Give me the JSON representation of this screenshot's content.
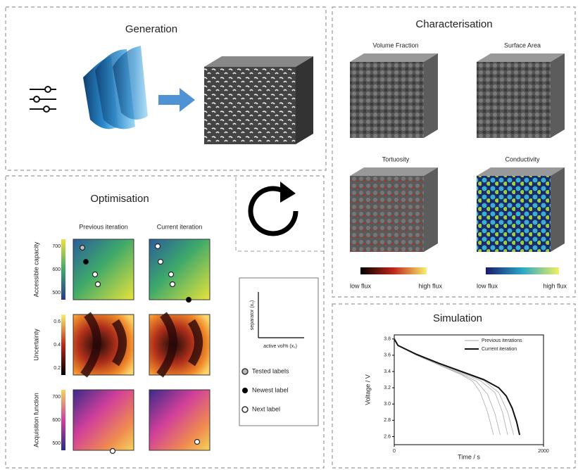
{
  "generation": {
    "title": "Generation"
  },
  "characterisation": {
    "title": "Characterisation",
    "panels": [
      "Volume Fraction",
      "Surface Area",
      "Tortuosity",
      "Conductivity"
    ],
    "scale_low": "low flux",
    "scale_high": "high flux"
  },
  "optimisation": {
    "title": "Optimisation",
    "columns": [
      "Previous iteration",
      "Current iteration"
    ],
    "rows": [
      {
        "label": "Accessible capacity",
        "ticks": [
          "700",
          "600",
          "500"
        ]
      },
      {
        "label": "Uncertainty",
        "ticks": [
          "0.6",
          "0.4",
          "0.2"
        ]
      },
      {
        "label": "Acquisition function",
        "ticks": [
          "700",
          "600",
          "500"
        ]
      }
    ],
    "legend": {
      "x_axis": "active vol% (x₁)",
      "y_axis": "separator (x₂)",
      "items": [
        "Tested labels",
        "Newest label",
        "Next label"
      ]
    }
  },
  "simulation": {
    "title": "Simulation",
    "x_label": "Time / s",
    "y_label": "Voltage / V",
    "xlim": [
      0,
      2000
    ],
    "xticks": [
      0,
      2000
    ],
    "ylim": [
      2.5,
      3.85
    ],
    "yticks": [
      3.8,
      3.6,
      3.4,
      3.2,
      {
        "value": 3,
        "label": "3.0"
      },
      2.8,
      2.6
    ],
    "series": [
      {
        "name": "Previous iterations",
        "color": "#aaaaaa",
        "x": [
          0,
          50,
          300,
          600,
          900,
          1050,
          1150,
          1250,
          1330
        ],
        "y": [
          3.8,
          3.72,
          3.6,
          3.48,
          3.36,
          3.28,
          3.15,
          2.9,
          2.62
        ]
      },
      {
        "name": null,
        "color": "#aaaaaa",
        "x": [
          0,
          50,
          300,
          600,
          900,
          1100,
          1250,
          1350,
          1420
        ],
        "y": [
          3.8,
          3.72,
          3.6,
          3.48,
          3.37,
          3.28,
          3.12,
          2.88,
          2.62
        ]
      },
      {
        "name": null,
        "color": "#aaaaaa",
        "x": [
          0,
          50,
          300,
          600,
          900,
          1150,
          1350,
          1450,
          1520
        ],
        "y": [
          3.8,
          3.72,
          3.6,
          3.49,
          3.38,
          3.29,
          3.14,
          2.9,
          2.62
        ]
      },
      {
        "name": null,
        "color": "#aaaaaa",
        "x": [
          0,
          50,
          300,
          600,
          900,
          1200,
          1400,
          1520,
          1600
        ],
        "y": [
          3.8,
          3.72,
          3.6,
          3.5,
          3.39,
          3.29,
          3.14,
          2.9,
          2.62
        ]
      },
      {
        "name": "Current iteration",
        "color": "#111111",
        "x": [
          0,
          50,
          300,
          600,
          900,
          1200,
          1400,
          1500,
          1580,
          1640,
          1680
        ],
        "y": [
          3.8,
          3.72,
          3.61,
          3.5,
          3.4,
          3.3,
          3.2,
          3.1,
          2.95,
          2.78,
          2.62
        ]
      }
    ]
  }
}
